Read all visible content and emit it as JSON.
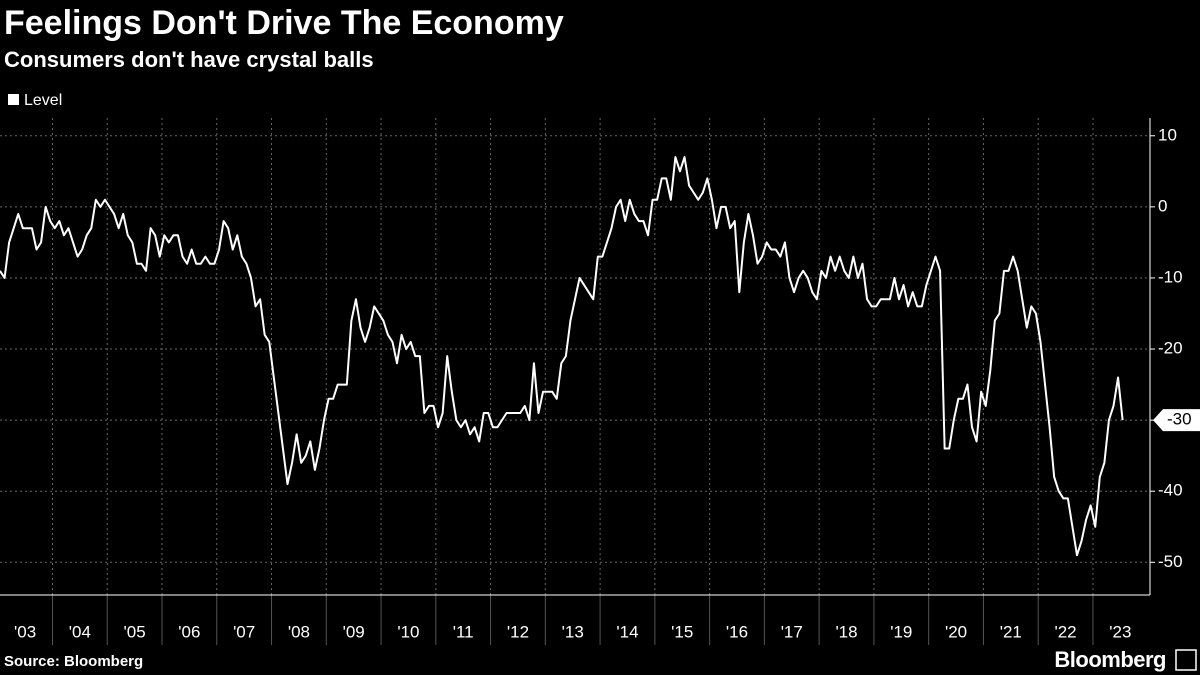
{
  "chart_data": {
    "type": "line",
    "title": "Feelings Don't Drive The Economy",
    "subtitle": "Consumers don't have crystal balls",
    "source": "Source: Bloomberg",
    "brand": "Bloomberg",
    "grid": true,
    "legend": "top-left",
    "series": [
      {
        "name": "Level",
        "color": "#ffffff",
        "values": [
          -9,
          -10,
          -5,
          -3,
          -1,
          -3,
          -3,
          -3,
          -6,
          -5,
          0,
          -2,
          -3,
          -2,
          -4,
          -3,
          -5,
          -7,
          -6,
          -4,
          -3,
          1,
          0,
          1,
          0,
          -1,
          -3,
          -1,
          -4,
          -5,
          -8,
          -8,
          -9,
          -3,
          -4,
          -7,
          -4,
          -5,
          -4,
          -4,
          -7,
          -8,
          -6,
          -8,
          -8,
          -7,
          -8,
          -8,
          -6,
          -2,
          -3,
          -6,
          -4,
          -7,
          -8,
          -10,
          -14,
          -13,
          -18,
          -19,
          -24,
          -29,
          -34,
          -39,
          -36,
          -32,
          -36,
          -35,
          -33,
          -37,
          -34,
          -30,
          -27,
          -27,
          -25,
          -25,
          -25,
          -16,
          -13,
          -17,
          -19,
          -17,
          -14,
          -15,
          -16,
          -18,
          -19,
          -22,
          -18,
          -20,
          -19,
          -21,
          -21,
          -29,
          -28,
          -28,
          -31,
          -29,
          -21,
          -26,
          -30,
          -31,
          -30,
          -32,
          -31,
          -33,
          -29,
          -29,
          -31,
          -31,
          -30,
          -29,
          -29,
          -29,
          -29,
          -28,
          -30,
          -22,
          -29,
          -26,
          -26,
          -26,
          -27,
          -22,
          -21,
          -16,
          -13,
          -10,
          -11,
          -12,
          -13,
          -7,
          -7,
          -5,
          -3,
          0,
          1,
          -2,
          1,
          -1,
          -2,
          -2,
          -4,
          1,
          1,
          4,
          4,
          1,
          7,
          5,
          7,
          3,
          2,
          1,
          2,
          4,
          1,
          -3,
          0,
          0,
          -3,
          -2,
          -12,
          -5,
          -1,
          -4,
          -8,
          -7,
          -5,
          -6,
          -6,
          -7,
          -5,
          -10,
          -12,
          -10,
          -9,
          -10,
          -12,
          -13,
          -9,
          -10,
          -7,
          -9,
          -7,
          -9,
          -10,
          -7,
          -10,
          -8,
          -13,
          -14,
          -14,
          -13,
          -13,
          -13,
          -10,
          -13,
          -11,
          -14,
          -12,
          -14,
          -14,
          -11,
          -9,
          -7,
          -9,
          -34,
          -34,
          -30,
          -27,
          -27,
          -25,
          -31,
          -33,
          -26,
          -28,
          -23,
          -16,
          -15,
          -9,
          -9,
          -7,
          -9,
          -13,
          -17,
          -14,
          -15,
          -19,
          -25,
          -31,
          -38,
          -40,
          -41,
          -41,
          -45,
          -49,
          -47,
          -44,
          -42,
          -45,
          -38,
          -36,
          -30,
          -28,
          -24,
          -30
        ]
      }
    ],
    "xlim": [
      0,
      252
    ],
    "xticks": [
      {
        "value": 5.5,
        "label": "'03"
      },
      {
        "value": 17.5,
        "label": "'04"
      },
      {
        "value": 29.5,
        "label": "'05"
      },
      {
        "value": 41.5,
        "label": "'06"
      },
      {
        "value": 53.5,
        "label": "'07"
      },
      {
        "value": 65.5,
        "label": "'08"
      },
      {
        "value": 77.5,
        "label": "'09"
      },
      {
        "value": 89.5,
        "label": "'10"
      },
      {
        "value": 101.5,
        "label": "'11"
      },
      {
        "value": 113.5,
        "label": "'12"
      },
      {
        "value": 125.5,
        "label": "'13"
      },
      {
        "value": 137.5,
        "label": "'14"
      },
      {
        "value": 149.5,
        "label": "'15"
      },
      {
        "value": 161.5,
        "label": "'16"
      },
      {
        "value": 173.5,
        "label": "'17"
      },
      {
        "value": 185.5,
        "label": "'18"
      },
      {
        "value": 197.5,
        "label": "'19"
      },
      {
        "value": 209.5,
        "label": "'20"
      },
      {
        "value": 221.5,
        "label": "'21"
      },
      {
        "value": 233.5,
        "label": "'22"
      },
      {
        "value": 245.5,
        "label": "'23"
      }
    ],
    "ylim": [
      -54.6,
      12.5
    ],
    "yticks": [
      10,
      0,
      -10,
      -20,
      -30,
      -40,
      -50
    ]
  }
}
